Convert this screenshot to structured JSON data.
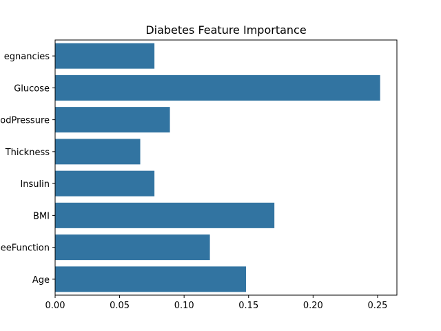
{
  "chart_data": {
    "type": "bar",
    "orientation": "horizontal",
    "title": "Diabetes Feature Importance",
    "xlabel": "",
    "ylabel": "",
    "categories": [
      "Pregnancies",
      "Glucose",
      "BloodPressure",
      "SkinThickness",
      "Insulin",
      "BMI",
      "DiabetesPedigreeFunction",
      "Age"
    ],
    "category_labels_visible": [
      "egnancies",
      "Glucose",
      "odPressure",
      "Thickness",
      "Insulin",
      "BMI",
      "eeFunction",
      "Age"
    ],
    "values": [
      0.077,
      0.252,
      0.089,
      0.066,
      0.077,
      0.17,
      0.12,
      0.148
    ],
    "xlim": [
      0,
      0.265
    ],
    "xticks": [
      0.0,
      0.05,
      0.1,
      0.15,
      0.2,
      0.25
    ],
    "xtick_labels": [
      "0.00",
      "0.05",
      "0.10",
      "0.15",
      "0.20",
      "0.25"
    ],
    "bar_color": "#3274a1",
    "grid": false
  }
}
